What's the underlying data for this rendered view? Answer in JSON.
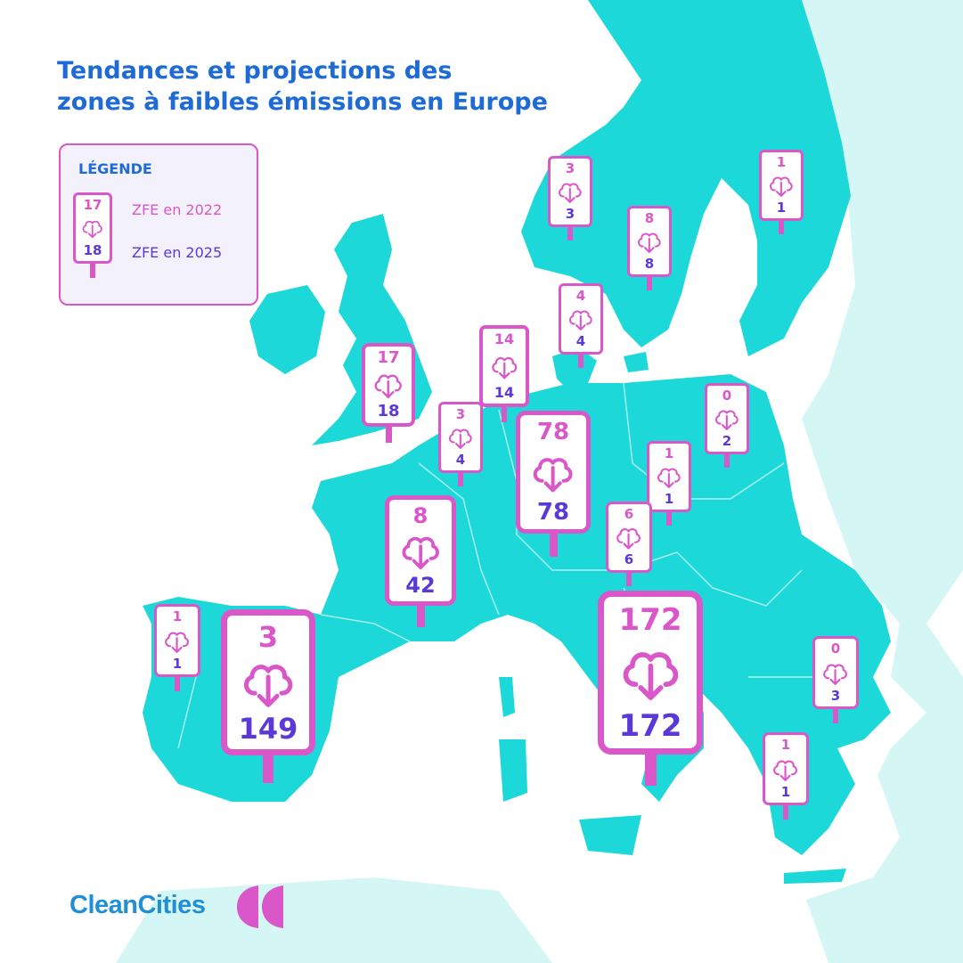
{
  "title": {
    "line1": "Tendances et projections des",
    "line2": "zones à faibles émissions en Europe"
  },
  "legend": {
    "heading": "LÉGENDE",
    "example_2022": "17",
    "example_2025": "18",
    "label_2022": "ZFE en 2022",
    "label_2025": "ZFE en 2025"
  },
  "signs": [
    {
      "id": "norway",
      "zfe_2022": "3",
      "zfe_2025": "3"
    },
    {
      "id": "sweden",
      "zfe_2022": "8",
      "zfe_2025": "8"
    },
    {
      "id": "finland",
      "zfe_2022": "1",
      "zfe_2025": "1"
    },
    {
      "id": "denmark",
      "zfe_2022": "4",
      "zfe_2025": "4"
    },
    {
      "id": "netherlands",
      "zfe_2022": "14",
      "zfe_2025": "14"
    },
    {
      "id": "united-kingdom",
      "zfe_2022": "17",
      "zfe_2025": "18"
    },
    {
      "id": "belgium",
      "zfe_2022": "3",
      "zfe_2025": "4"
    },
    {
      "id": "germany",
      "zfe_2022": "78",
      "zfe_2025": "78"
    },
    {
      "id": "poland",
      "zfe_2022": "0",
      "zfe_2025": "2"
    },
    {
      "id": "czechia",
      "zfe_2022": "1",
      "zfe_2025": "1"
    },
    {
      "id": "austria",
      "zfe_2022": "6",
      "zfe_2025": "6"
    },
    {
      "id": "france",
      "zfe_2022": "8",
      "zfe_2025": "42"
    },
    {
      "id": "portugal",
      "zfe_2022": "1",
      "zfe_2025": "1"
    },
    {
      "id": "spain",
      "zfe_2022": "3",
      "zfe_2025": "149"
    },
    {
      "id": "italy",
      "zfe_2022": "172",
      "zfe_2025": "172"
    },
    {
      "id": "bulgaria",
      "zfe_2022": "0",
      "zfe_2025": "3"
    },
    {
      "id": "greece",
      "zfe_2022": "1",
      "zfe_2025": "1"
    }
  ],
  "logo": {
    "text": "CleanCities"
  },
  "colors": {
    "land": "#1cd8d8",
    "land_outside": "#d4f7f6",
    "sign_border": "#d957c9",
    "value_2022": "#d957c9",
    "value_2025": "#5a39d6",
    "title": "#1f6bd6",
    "logo_text": "#1f8fd6",
    "logo_mark": "#d957c9"
  }
}
